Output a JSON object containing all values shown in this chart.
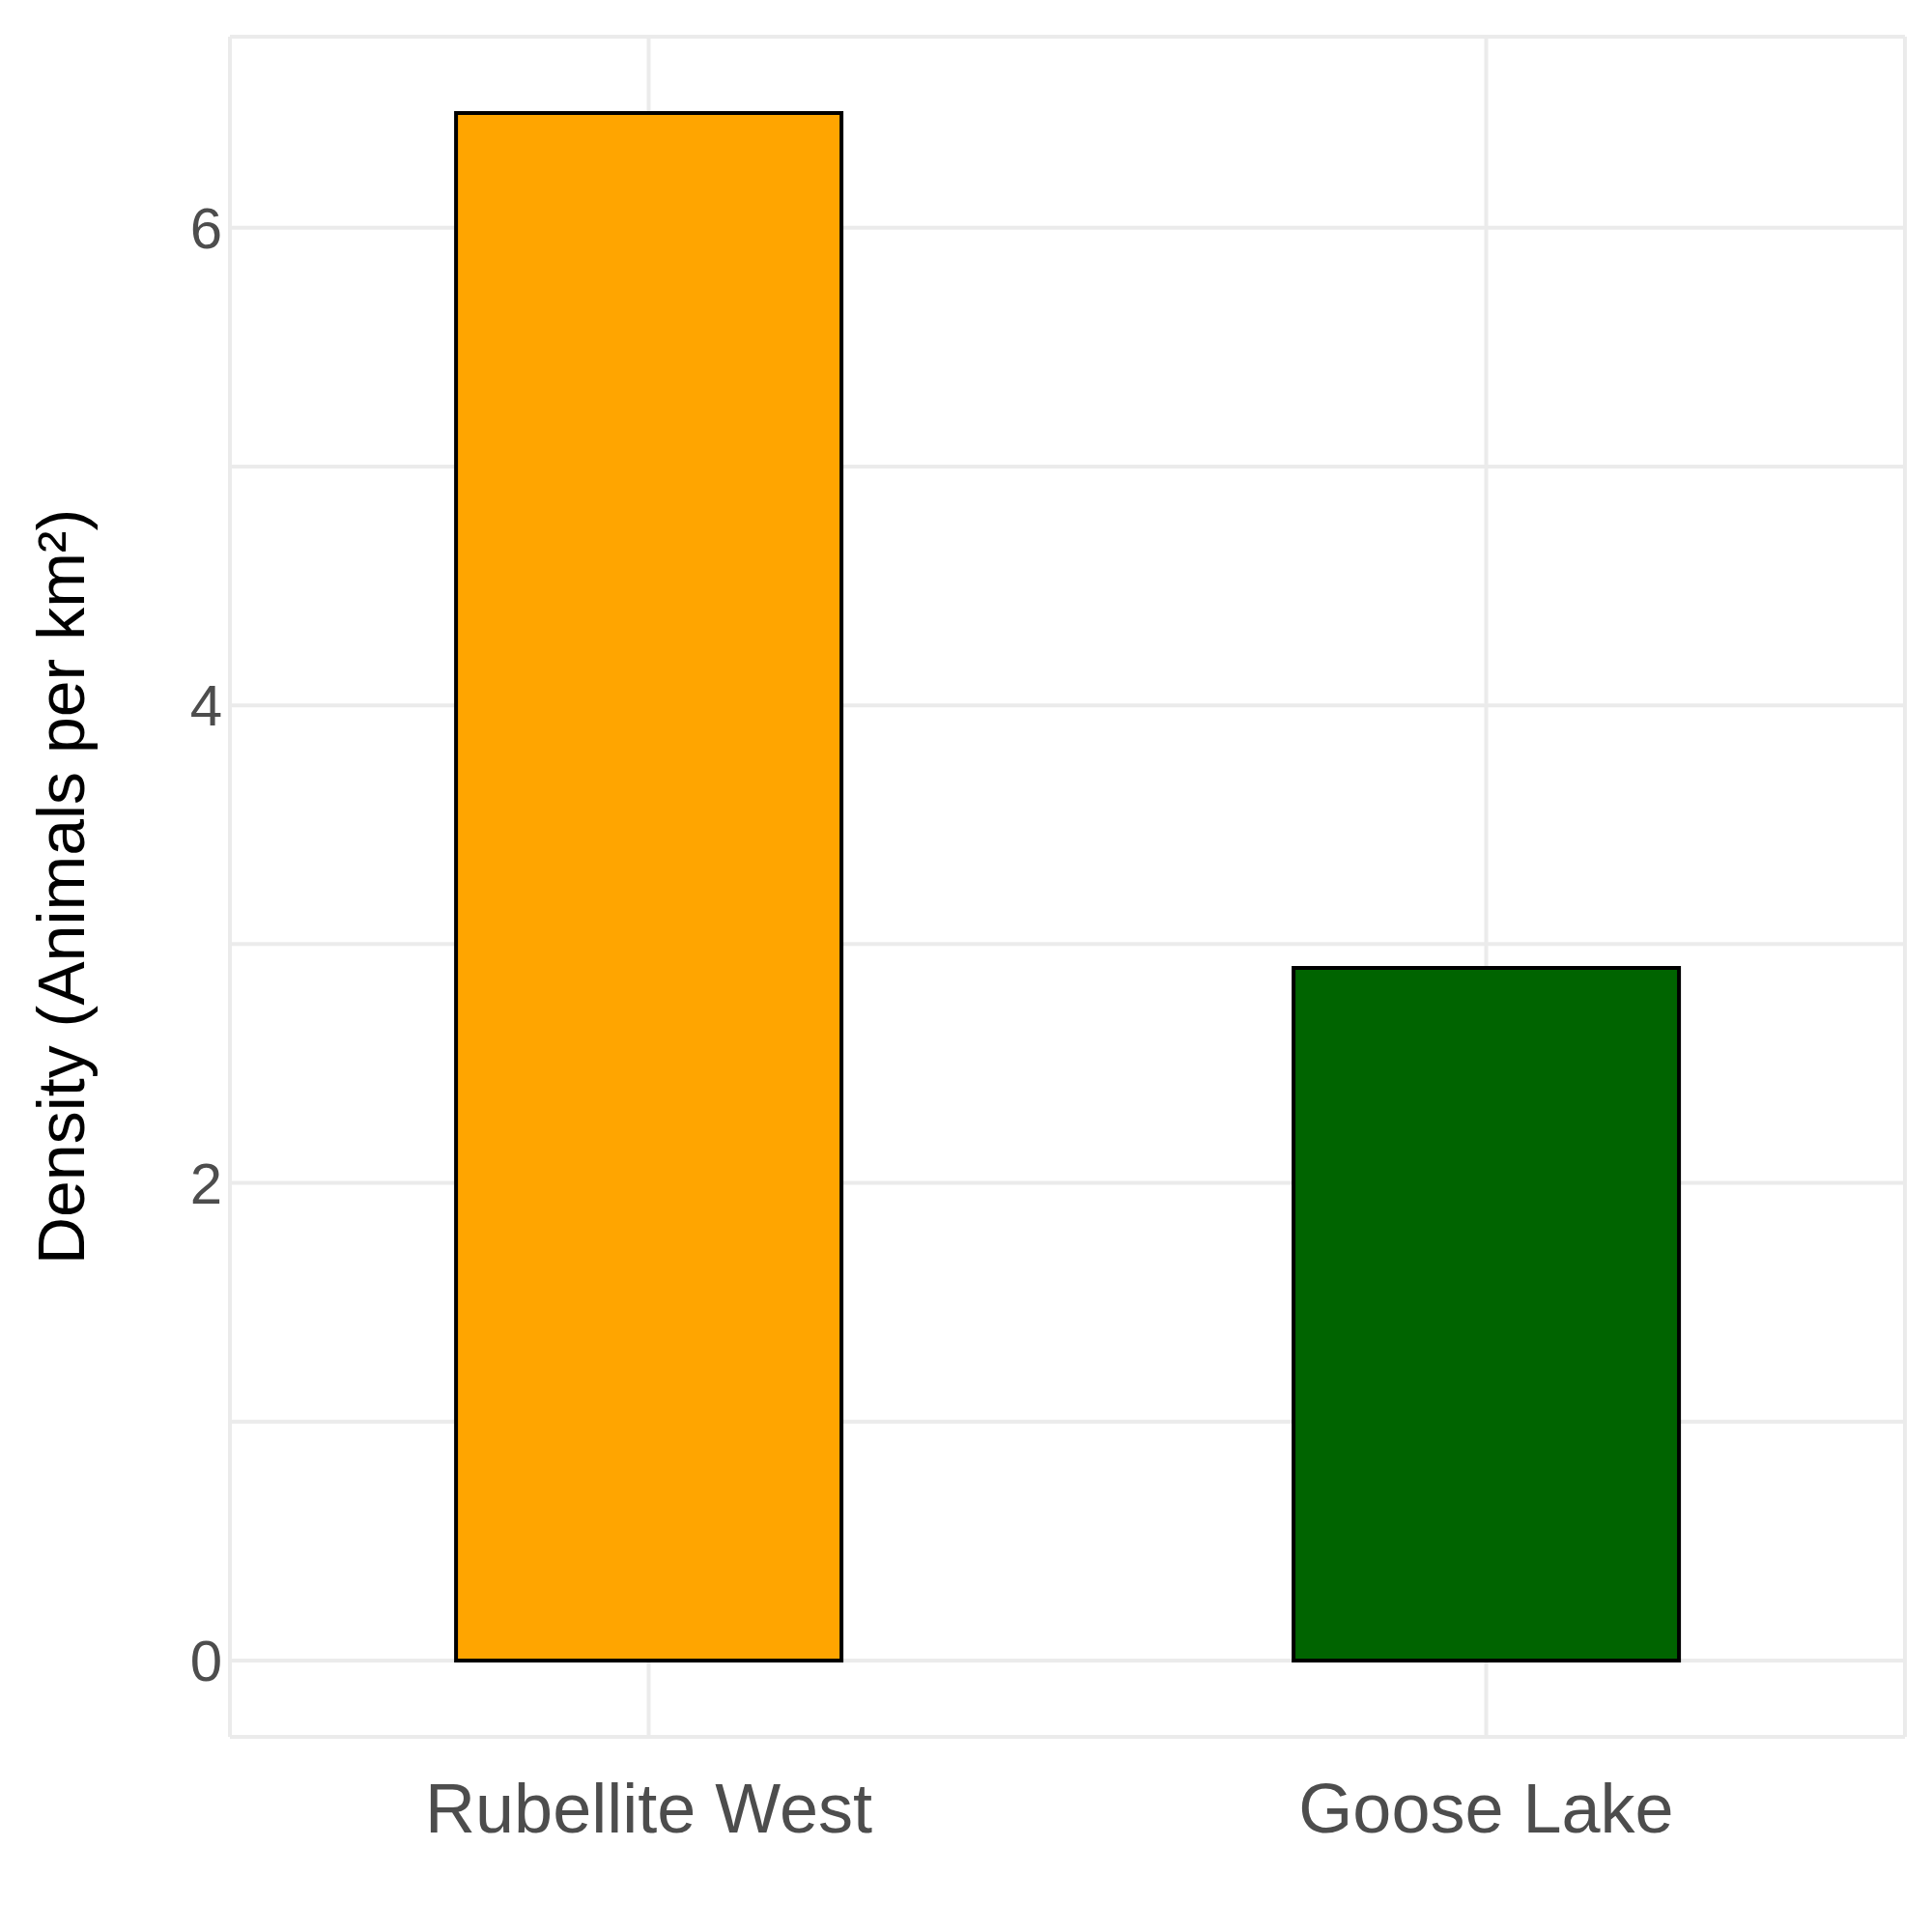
{
  "chart_data": {
    "type": "bar",
    "ylabel": "Density (Animals per km²)",
    "categories": [
      "Rubellite West",
      "Goose Lake"
    ],
    "values": [
      6.48,
      2.9
    ],
    "colors": [
      "#ffa500",
      "#006400"
    ],
    "ylim": [
      -0.32,
      6.8
    ],
    "yticks": [
      0,
      {
        "value": 1,
        "label": null
      },
      2,
      {
        "value": 3,
        "label": null
      },
      4,
      {
        "value": 5,
        "label": null
      },
      6
    ],
    "grid": true
  }
}
